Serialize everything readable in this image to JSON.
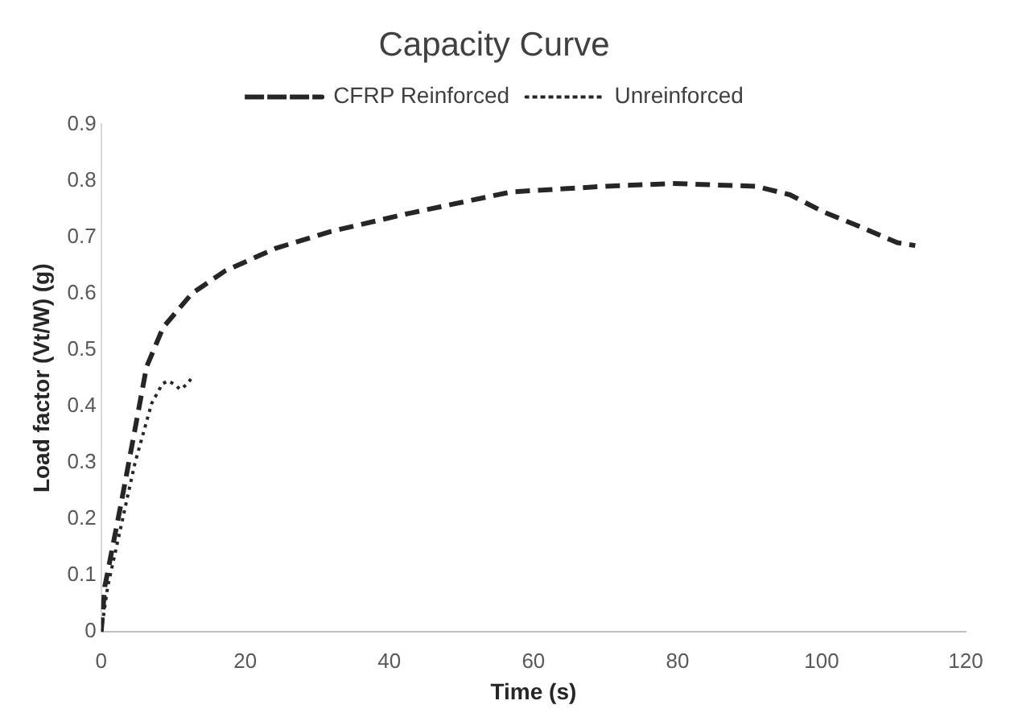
{
  "chart_data": {
    "type": "line",
    "title": "Capacity Curve",
    "xlabel": "Time (s)",
    "ylabel": "Load factor (Vt/W) (g)",
    "xlim": [
      0,
      120
    ],
    "xticks": [
      0,
      20,
      40,
      60,
      80,
      100,
      120
    ],
    "ylim": [
      0,
      0.9
    ],
    "yticks": [
      0,
      0.1,
      0.2,
      0.3,
      0.4,
      0.5,
      0.6,
      0.7,
      0.8,
      0.9
    ],
    "legend": "top",
    "marker": "none",
    "series": [
      {
        "name": "CFRP Reinforced",
        "color": "#262626",
        "line_style": "dashed",
        "x": [
          0,
          0.5,
          2.8,
          4.7,
          6.3,
          8.6,
          12.6,
          17.2,
          24.2,
          31.9,
          42,
          56.9,
          70,
          79.3,
          90.9,
          95.6,
          100.2,
          105,
          110.5,
          113
        ],
        "values": [
          0,
          0.08,
          0.23,
          0.36,
          0.47,
          0.54,
          0.6,
          0.64,
          0.68,
          0.71,
          0.74,
          0.78,
          0.79,
          0.795,
          0.79,
          0.775,
          0.745,
          0.72,
          0.69,
          0.685
        ]
      },
      {
        "name": "Unreinforced",
        "color": "#262626",
        "line_style": "dotted",
        "x": [
          0,
          0.9,
          2.8,
          4.7,
          7,
          8.5,
          9.3,
          10,
          11,
          12,
          12.8
        ],
        "values": [
          0,
          0.08,
          0.19,
          0.3,
          0.405,
          0.44,
          0.445,
          0.44,
          0.43,
          0.44,
          0.455
        ]
      }
    ]
  }
}
